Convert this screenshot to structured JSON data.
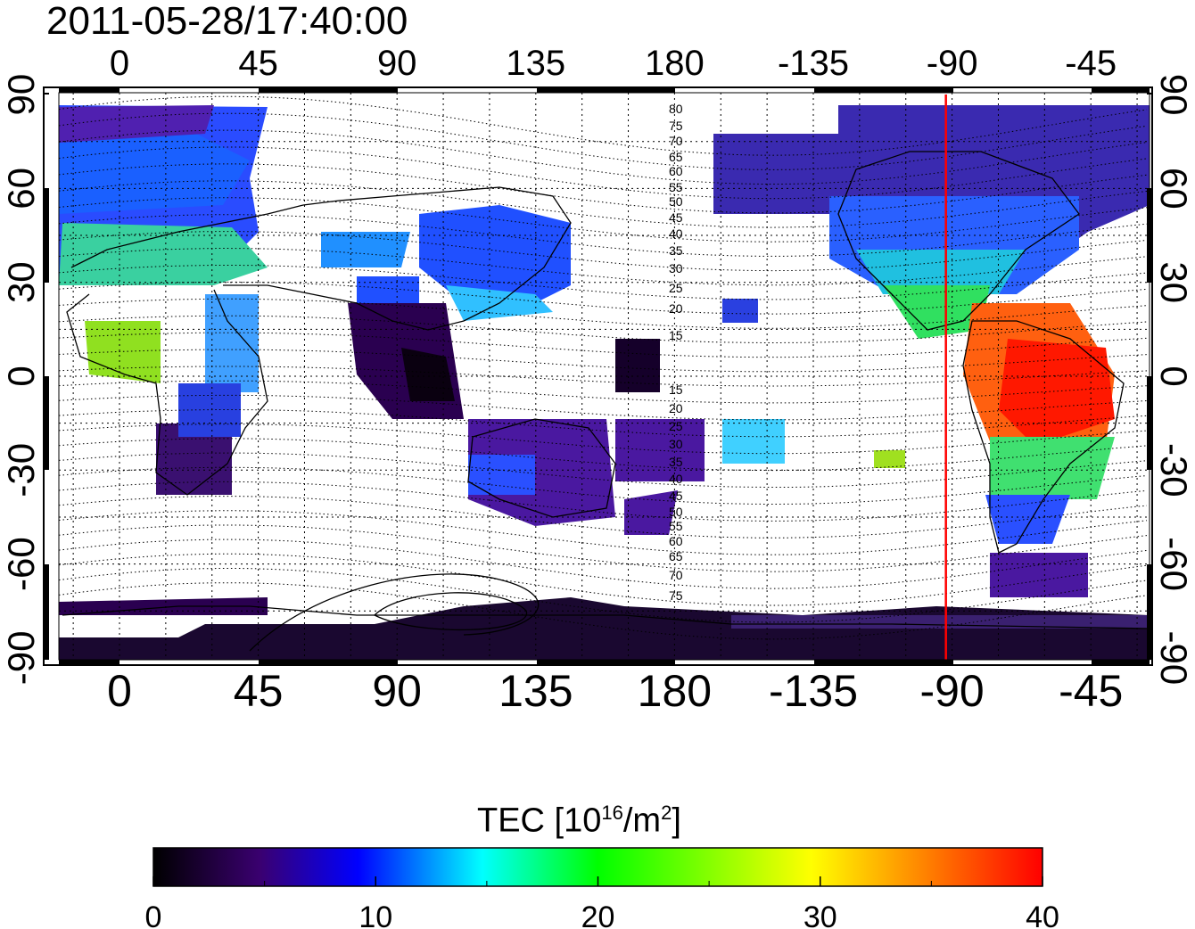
{
  "timestamp": "2011-05-28/17:40:00",
  "map": {
    "lon_ticks": [
      "0",
      "45",
      "90",
      "135",
      "180",
      "-135",
      "-90",
      "-45"
    ],
    "lat_ticks": [
      "90",
      "60",
      "30",
      "0",
      "-30",
      "-60",
      "-90"
    ],
    "meridian_marker_lon": -92,
    "marker_color": "#ff0000",
    "contour_labels_north": [
      "80",
      "75",
      "70",
      "65",
      "60",
      "55",
      "50",
      "45",
      "40",
      "35",
      "30",
      "25",
      "20",
      "15"
    ],
    "contour_labels_south": [
      "15",
      "20",
      "25",
      "30",
      "35",
      "40",
      "45",
      "50",
      "55",
      "60",
      "65",
      "70",
      "75"
    ]
  },
  "colorbar": {
    "title_prefix": "TEC  [10",
    "title_exp": "16",
    "title_mid": "/m",
    "title_exp2": "2",
    "title_suffix": "]",
    "ticks": [
      "0",
      "10",
      "20",
      "30",
      "40"
    ],
    "range": [
      0,
      40
    ],
    "colors": [
      "#000000",
      "#3a0070",
      "#0000ff",
      "#00ffff",
      "#00ff00",
      "#ffff00",
      "#ff0000"
    ]
  }
}
